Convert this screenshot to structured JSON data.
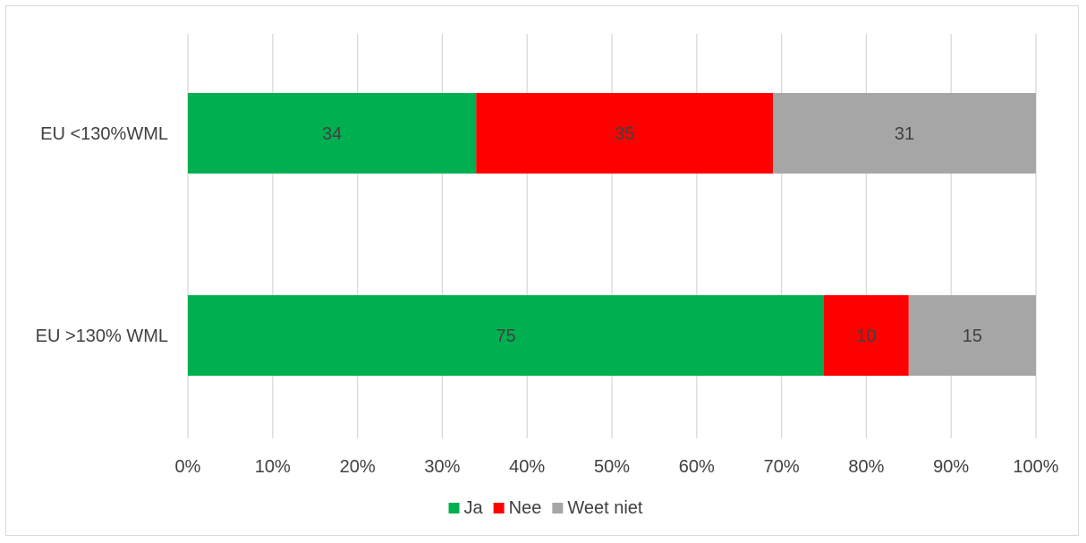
{
  "chart_data": {
    "type": "bar",
    "orientation": "horizontal",
    "stacked": true,
    "percent_stacked": true,
    "categories": [
      "EU <130%WML",
      "EU >130% WML"
    ],
    "series": [
      {
        "name": "Ja",
        "color": "#00b050",
        "values": [
          34,
          75
        ]
      },
      {
        "name": "Nee",
        "color": "#ff0000",
        "values": [
          35,
          10
        ]
      },
      {
        "name": "Weet niet",
        "color": "#a6a6a6",
        "values": [
          31,
          15
        ]
      }
    ],
    "xlim": [
      0,
      100
    ],
    "xticks": [
      "0%",
      "10%",
      "20%",
      "30%",
      "40%",
      "50%",
      "60%",
      "70%",
      "80%",
      "90%",
      "100%"
    ],
    "grid": true,
    "legend": "bottom",
    "title": "",
    "xlabel": "",
    "ylabel": ""
  }
}
